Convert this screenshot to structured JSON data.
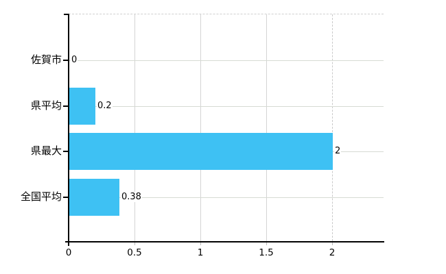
{
  "chart_data": {
    "type": "bar",
    "orientation": "horizontal",
    "title": "",
    "xlabel": "",
    "ylabel": "",
    "categories": [
      "佐賀市",
      "県平均",
      "県最大",
      "全国平均"
    ],
    "values": [
      0,
      0.2,
      2,
      0.38
    ],
    "value_labels": [
      "0",
      "0.2",
      "2",
      "0.38"
    ],
    "x_ticks": [
      0,
      0.5,
      1,
      1.5,
      2
    ],
    "x_tick_labels": [
      "0",
      "0.5",
      "1",
      "1.5",
      "2"
    ],
    "xlim": [
      0,
      2.39
    ],
    "grid": true,
    "legend": "none",
    "colors": {
      "bar": "#3ec1f3",
      "axis": "#000000",
      "hgrid": "#d6dad3",
      "vgrid": "#d4d4d4",
      "dashed_grid": "#c9c9c9",
      "background": "#ffffff",
      "label_text": "#000000"
    },
    "dashed_top_border": true,
    "dashed_gridline_at_x": 2
  }
}
